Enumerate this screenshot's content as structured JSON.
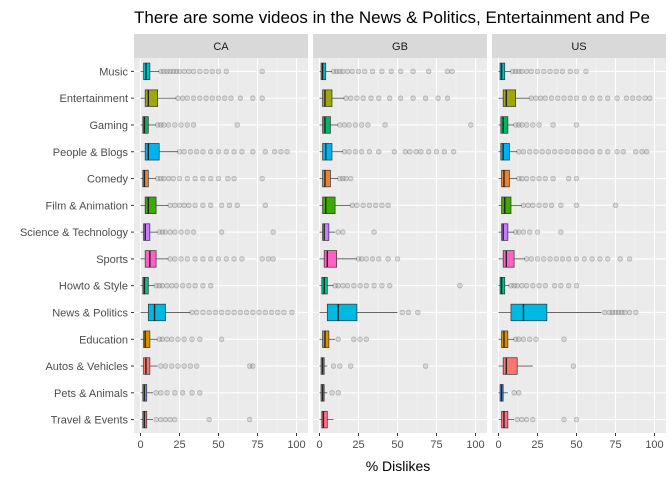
{
  "chart_data": {
    "type": "boxplot",
    "title": "There are some videos in the News & Politics, Entertainment and Pe",
    "xlabel": "% Dislikes",
    "ylabel": "",
    "xlim": [
      0,
      100
    ],
    "xticks": [
      0,
      25,
      50,
      75,
      100
    ],
    "orientation": "horizontal",
    "legend": "none",
    "grid": true,
    "panel_background": "#ebebeb",
    "strip_background": "#d9d9d9",
    "categories": [
      "Music",
      "Entertainment",
      "Gaming",
      "People & Blogs",
      "Comedy",
      "Film & Animation",
      "Science & Technology",
      "Sports",
      "Howto & Style",
      "News & Politics",
      "Education",
      "Autos & Vehicles",
      "Pets & Animals",
      "Travel & Events"
    ],
    "colors": {
      "Music": "#00bfc4",
      "Entertainment": "#9fa80a",
      "Gaming": "#00b75f",
      "People & Blogs": "#00b2f0",
      "Comedy": "#ea8331",
      "Film & Animation": "#3caa00",
      "Science & Technology": "#c77cff",
      "Sports": "#ff61c3",
      "Howto & Style": "#00c08b",
      "News & Politics": "#00b9e3",
      "Education": "#d89000",
      "Autos & Vehicles": "#f8766d",
      "Pets & Animals": "#619cff",
      "Travel & Events": "#fe6e8a"
    },
    "panels": [
      {
        "name": "CA",
        "boxes": [
          {
            "category": "Music",
            "min": 0,
            "q1": 2,
            "median": 3.5,
            "q3": 6,
            "max": 12,
            "outliers": [
              13,
              15,
              17,
              19,
              21,
              23,
              25,
              28,
              31,
              34,
              38,
              42,
              46,
              50,
              55,
              78
            ]
          },
          {
            "category": "Entertainment",
            "min": 0,
            "q1": 3,
            "median": 5,
            "q3": 11,
            "max": 23,
            "outliers": [
              24,
              27,
              30,
              34,
              38,
              42,
              46,
              50,
              54,
              58,
              64,
              72,
              78
            ]
          },
          {
            "category": "Gaming",
            "min": 0,
            "q1": 1.5,
            "median": 2.5,
            "q3": 5,
            "max": 10,
            "outliers": [
              11,
              13,
              15,
              18,
              22,
              26,
              30,
              34,
              62
            ]
          },
          {
            "category": "People & Blogs",
            "min": 0,
            "q1": 3,
            "median": 5,
            "q3": 12,
            "max": 24,
            "outliers": [
              25,
              28,
              32,
              36,
              40,
              45,
              50,
              55,
              60,
              65,
              72,
              80,
              86,
              90,
              94
            ]
          },
          {
            "category": "Comedy",
            "min": 0,
            "q1": 1.5,
            "median": 2.5,
            "q3": 5,
            "max": 10,
            "outliers": [
              11,
              13,
              15,
              18,
              21,
              25,
              30,
              35,
              40,
              45,
              50,
              56,
              60,
              78
            ]
          },
          {
            "category": "Film & Animation",
            "min": 0,
            "q1": 3,
            "median": 5,
            "q3": 10,
            "max": 18,
            "outliers": [
              19,
              22,
              25,
              28,
              31,
              35,
              40,
              45,
              52,
              57,
              62,
              80
            ]
          },
          {
            "category": "Science & Technology",
            "min": 0,
            "q1": 2,
            "median": 3,
            "q3": 6,
            "max": 11,
            "outliers": [
              12,
              14,
              16,
              19,
              22,
              26,
              30,
              34,
              52,
              85
            ]
          },
          {
            "category": "Sports",
            "min": 0,
            "q1": 3,
            "median": 6,
            "q3": 10,
            "max": 18,
            "outliers": [
              19,
              22,
              26,
              30,
              35,
              40,
              45,
              50,
              55,
              60,
              65,
              78,
              82,
              85
            ]
          },
          {
            "category": "Howto & Style",
            "min": 0,
            "q1": 1.5,
            "median": 2.5,
            "q3": 5,
            "max": 9,
            "outliers": [
              10,
              12,
              14,
              17,
              20,
              23,
              27,
              31,
              35,
              40,
              45
            ]
          },
          {
            "category": "News & Politics",
            "min": 0,
            "q1": 5,
            "median": 9,
            "q3": 16,
            "max": 32,
            "outliers": [
              33,
              36,
              40,
              44,
              48,
              52,
              56,
              60,
              64,
              68,
              72,
              76,
              80,
              84,
              88,
              92,
              97
            ]
          },
          {
            "category": "Education",
            "min": 0,
            "q1": 2,
            "median": 3,
            "q3": 6,
            "max": 11,
            "outliers": [
              12,
              14,
              17,
              20,
              24,
              28,
              33,
              38,
              52
            ]
          },
          {
            "category": "Autos & Vehicles",
            "min": 0,
            "q1": 2,
            "median": 3.5,
            "q3": 6,
            "max": 11,
            "outliers": [
              13,
              16,
              20,
              24,
              28,
              32,
              36,
              70,
              72
            ]
          },
          {
            "category": "Pets & Animals",
            "min": 0,
            "q1": 1.5,
            "median": 2.5,
            "q3": 4,
            "max": 8,
            "outliers": [
              10,
              13,
              17,
              22,
              27,
              33,
              38
            ]
          },
          {
            "category": "Travel & Events",
            "min": 0,
            "q1": 1.5,
            "median": 2.5,
            "q3": 4,
            "max": 8,
            "outliers": [
              10,
              13,
              16,
              19,
              22,
              44,
              70
            ]
          }
        ]
      },
      {
        "name": "GB",
        "boxes": [
          {
            "category": "Music",
            "min": 0,
            "q1": 1,
            "median": 2,
            "q3": 4,
            "max": 8,
            "outliers": [
              9,
              11,
              13,
              15,
              18,
              21,
              25,
              29,
              34,
              40,
              46,
              52,
              60,
              70,
              82,
              85
            ]
          },
          {
            "category": "Entertainment",
            "min": 0,
            "q1": 2,
            "median": 3.5,
            "q3": 8,
            "max": 16,
            "outliers": [
              17,
              20,
              24,
              28,
              33,
              38,
              45,
              52,
              60,
              68,
              76,
              82
            ]
          },
          {
            "category": "Gaming",
            "min": 0,
            "q1": 2,
            "median": 3.5,
            "q3": 7,
            "max": 12,
            "outliers": [
              13,
              16,
              19,
              23,
              27,
              31,
              42,
              97
            ]
          },
          {
            "category": "People & Blogs",
            "min": 0,
            "q1": 2,
            "median": 4,
            "q3": 8,
            "max": 15,
            "outliers": [
              16,
              19,
              23,
              27,
              32,
              38,
              48,
              55,
              58,
              62,
              65,
              70,
              75,
              80,
              86
            ]
          },
          {
            "category": "Comedy",
            "min": 0,
            "q1": 2,
            "median": 3.5,
            "q3": 7,
            "max": 12,
            "outliers": [
              13,
              15,
              17,
              20
            ]
          },
          {
            "category": "Film & Animation",
            "min": 0,
            "q1": 2,
            "median": 4,
            "q3": 10,
            "max": 20,
            "outliers": [
              21,
              24,
              28,
              32,
              36,
              40,
              44
            ]
          },
          {
            "category": "Science & Technology",
            "min": 0,
            "q1": 2,
            "median": 3,
            "q3": 6,
            "max": 10,
            "outliers": [
              12,
              15,
              35
            ]
          },
          {
            "category": "Sports",
            "min": 0,
            "q1": 3,
            "median": 5,
            "q3": 11,
            "max": 24,
            "outliers": [
              25,
              27,
              30,
              34,
              38,
              44,
              50
            ]
          },
          {
            "category": "Howto & Style",
            "min": 0,
            "q1": 1.5,
            "median": 3,
            "q3": 5,
            "max": 9,
            "outliers": [
              10,
              12,
              15,
              18,
              22,
              26,
              30,
              35,
              40,
              45,
              90
            ]
          },
          {
            "category": "News & Politics",
            "min": 0,
            "q1": 5,
            "median": 12,
            "q3": 24,
            "max": 50,
            "outliers": [
              53,
              57,
              63
            ]
          },
          {
            "category": "Education",
            "min": 0,
            "q1": 2,
            "median": 3.5,
            "q3": 6,
            "max": 10,
            "outliers": [
              12,
              22,
              26,
              30
            ]
          },
          {
            "category": "Autos & Vehicles",
            "min": 0,
            "q1": 1,
            "median": 2,
            "q3": 3,
            "max": 5,
            "outliers": [
              9,
              13,
              20,
              68
            ]
          },
          {
            "category": "Pets & Animals",
            "min": 0,
            "q1": 1,
            "median": 2,
            "q3": 3,
            "max": 5,
            "outliers": [
              8,
              12
            ]
          },
          {
            "category": "Travel & Events",
            "min": 0,
            "q1": 1.5,
            "median": 2.5,
            "q3": 5,
            "max": 9,
            "outliers": []
          }
        ]
      },
      {
        "name": "US",
        "boxes": [
          {
            "category": "Music",
            "min": 0,
            "q1": 1,
            "median": 2,
            "q3": 4,
            "max": 8,
            "outliers": [
              9,
              11,
              13,
              15,
              18,
              21,
              25,
              29,
              33,
              37,
              41,
              46,
              50,
              56
            ]
          },
          {
            "category": "Entertainment",
            "min": 0,
            "q1": 3,
            "median": 5,
            "q3": 11,
            "max": 20,
            "outliers": [
              21,
              24,
              27,
              30,
              34,
              38,
              42,
              46,
              50,
              55,
              60,
              65,
              70,
              76,
              82,
              86,
              90,
              94,
              97
            ]
          },
          {
            "category": "Gaming",
            "min": 0,
            "q1": 1.5,
            "median": 3,
            "q3": 6,
            "max": 10,
            "outliers": [
              11,
              13,
              15,
              18,
              22,
              26,
              35,
              50
            ]
          },
          {
            "category": "People & Blogs",
            "min": 0,
            "q1": 1.5,
            "median": 3,
            "q3": 7,
            "max": 12,
            "outliers": [
              13,
              16,
              20,
              24,
              28,
              32,
              36,
              40,
              44,
              48,
              52,
              56,
              60,
              65,
              70,
              76,
              80,
              88,
              92,
              95
            ]
          },
          {
            "category": "Comedy",
            "min": 0,
            "q1": 2,
            "median": 3.5,
            "q3": 7,
            "max": 12,
            "outliers": [
              13,
              15,
              18,
              22,
              26,
              30,
              35,
              45,
              50
            ]
          },
          {
            "category": "Film & Animation",
            "min": 0,
            "q1": 2,
            "median": 4,
            "q3": 8,
            "max": 15,
            "outliers": [
              16,
              19,
              22,
              26,
              30,
              34,
              40,
              50,
              75
            ]
          },
          {
            "category": "Science & Technology",
            "min": 0,
            "q1": 2,
            "median": 3,
            "q3": 6,
            "max": 10,
            "outliers": [
              11,
              13,
              16,
              20,
              25,
              40
            ]
          },
          {
            "category": "Sports",
            "min": 0,
            "q1": 3,
            "median": 5,
            "q3": 10,
            "max": 17,
            "outliers": [
              18,
              21,
              25,
              29,
              33,
              37,
              41,
              45,
              50,
              55,
              60,
              65,
              70,
              78,
              84
            ]
          },
          {
            "category": "Howto & Style",
            "min": 0,
            "q1": 1,
            "median": 2,
            "q3": 4,
            "max": 7,
            "outliers": [
              8,
              10,
              12,
              15,
              18,
              22,
              26,
              30,
              36,
              40,
              45,
              50
            ]
          },
          {
            "category": "News & Politics",
            "min": 0,
            "q1": 8,
            "median": 16,
            "q3": 31,
            "max": 66,
            "outliers": [
              68,
              71,
              73,
              75,
              77,
              79,
              81,
              84,
              88
            ]
          },
          {
            "category": "Education",
            "min": 0,
            "q1": 2,
            "median": 3.5,
            "q3": 6,
            "max": 10,
            "outliers": [
              11,
              13,
              16,
              20,
              24,
              42
            ]
          },
          {
            "category": "Autos & Vehicles",
            "min": 0,
            "q1": 3,
            "median": 5,
            "q3": 12,
            "max": 22,
            "outliers": [
              48
            ]
          },
          {
            "category": "Pets & Animals",
            "min": 0,
            "q1": 1,
            "median": 2,
            "q3": 3,
            "max": 6,
            "outliers": [
              10,
              13
            ]
          },
          {
            "category": "Travel & Events",
            "min": 0,
            "q1": 2,
            "median": 3.5,
            "q3": 6,
            "max": 10,
            "outliers": [
              12,
              15,
              18,
              22,
              42,
              50
            ]
          }
        ]
      }
    ]
  }
}
